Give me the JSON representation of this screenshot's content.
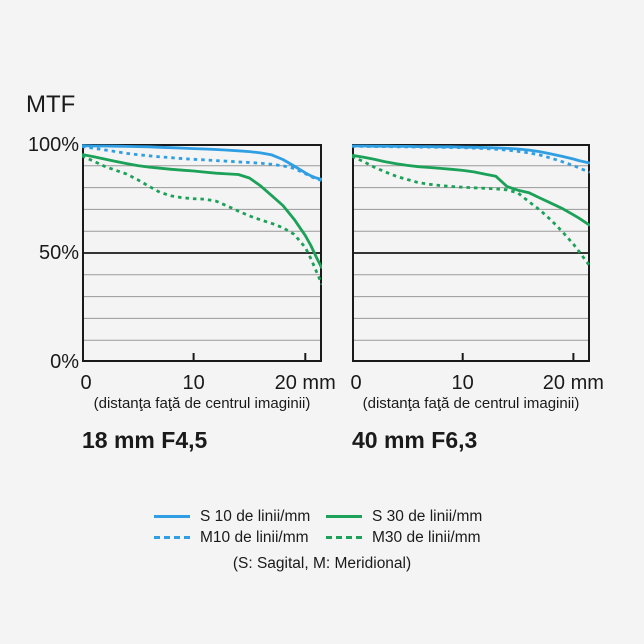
{
  "figure": {
    "y_axis_title": "MTF",
    "y_tick_labels": [
      "100%",
      "50%",
      "0%"
    ],
    "background_color": "#f4f4f4",
    "axis_color": "#1a1a1a",
    "grid_color": "#999999",
    "accent_blue": "#2f9ee3",
    "accent_green": "#1ba158"
  },
  "chart_data": [
    {
      "type": "line",
      "title": "18 mm F4,5",
      "xlabel": "(distanţa faţă de centrul imaginii)",
      "x_tick_labels": [
        "0",
        "10",
        "20 mm"
      ],
      "x_tick_values": [
        0,
        10,
        20
      ],
      "xlim": [
        0,
        21.5
      ],
      "ylim": [
        0,
        100
      ],
      "y_tick_labels": [
        "0%",
        "50%",
        "100%"
      ],
      "grid_step_percent": 10,
      "legend_position": "below-figure",
      "x": [
        0,
        1,
        2,
        3,
        4,
        5,
        6,
        7,
        8,
        9,
        10,
        11,
        12,
        13,
        14,
        15,
        16,
        17,
        18,
        19,
        20,
        20.5,
        21,
        21.5
      ],
      "series": [
        {
          "name": "S 10 de linii/mm",
          "style": "solid",
          "color": "#2f9ee3",
          "values": [
            99.2,
            99.1,
            99.1,
            99.0,
            98.9,
            98.8,
            98.7,
            98.5,
            98.3,
            98.1,
            97.9,
            97.7,
            97.5,
            97.2,
            96.9,
            96.5,
            95.9,
            95.0,
            92.9,
            89.9,
            86.8,
            85.4,
            84.4,
            83.7
          ]
        },
        {
          "name": "M10 de linii/mm",
          "style": "dashed",
          "color": "#2f9ee3",
          "values": [
            98.8,
            98.1,
            97.3,
            96.5,
            95.7,
            95.1,
            94.6,
            94.1,
            93.7,
            93.3,
            93.0,
            92.7,
            92.4,
            92.1,
            91.8,
            91.5,
            91.2,
            90.7,
            90.0,
            88.8,
            86.4,
            85.1,
            84.0,
            83.2
          ]
        },
        {
          "name": "S 30 de linii/mm",
          "style": "solid",
          "color": "#1ba158",
          "values": [
            95.2,
            94.2,
            93.1,
            92.0,
            91.0,
            90.1,
            89.4,
            88.9,
            88.4,
            88.0,
            87.6,
            87.1,
            86.6,
            86.3,
            86.0,
            84.4,
            80.8,
            76.3,
            71.8,
            65.5,
            58.0,
            53.5,
            48.0,
            43.0
          ]
        },
        {
          "name": "M30 de linii/mm",
          "style": "dashed",
          "color": "#1ba158",
          "values": [
            94.6,
            92.2,
            89.8,
            88.0,
            86.2,
            83.6,
            80.6,
            77.8,
            76.2,
            75.3,
            74.9,
            74.7,
            73.8,
            71.6,
            69.2,
            67.0,
            65.2,
            63.6,
            61.6,
            58.6,
            52.5,
            47.5,
            41.5,
            35.5
          ]
        }
      ]
    },
    {
      "type": "line",
      "title": "40 mm F6,3",
      "xlabel": "(distanţa faţă de centrul imaginii)",
      "x_tick_labels": [
        "0",
        "10",
        "20 mm"
      ],
      "x_tick_values": [
        0,
        10,
        20
      ],
      "xlim": [
        0,
        21.5
      ],
      "ylim": [
        0,
        100
      ],
      "y_tick_labels": [
        "0%",
        "50%",
        "100%"
      ],
      "grid_step_percent": 10,
      "legend_position": "below-figure",
      "x": [
        0,
        1,
        2,
        3,
        4,
        5,
        6,
        7,
        8,
        9,
        10,
        11,
        12,
        13,
        14,
        15,
        16,
        17,
        18,
        19,
        20,
        20.5,
        21,
        21.5
      ],
      "series": [
        {
          "name": "S 10 de linii/mm",
          "style": "solid",
          "color": "#2f9ee3",
          "values": [
            99.1,
            99.1,
            99.0,
            99.0,
            98.9,
            98.9,
            98.8,
            98.8,
            98.7,
            98.7,
            98.6,
            98.5,
            98.4,
            98.2,
            98.0,
            97.7,
            97.2,
            96.4,
            95.4,
            94.3,
            93.1,
            92.4,
            91.8,
            91.2
          ]
        },
        {
          "name": "M10 de linii/mm",
          "style": "dashed",
          "color": "#2f9ee3",
          "values": [
            98.9,
            98.9,
            98.8,
            98.8,
            98.7,
            98.7,
            98.6,
            98.6,
            98.5,
            98.4,
            98.3,
            98.1,
            97.9,
            97.6,
            97.2,
            96.6,
            95.9,
            94.9,
            93.5,
            91.9,
            90.1,
            89.1,
            88.0,
            87.0
          ]
        },
        {
          "name": "S 30 de linii/mm",
          "style": "solid",
          "color": "#1ba158",
          "values": [
            94.8,
            94.0,
            93.0,
            91.9,
            90.9,
            90.2,
            89.6,
            89.2,
            88.8,
            88.4,
            87.9,
            87.2,
            86.2,
            85.2,
            80.5,
            78.8,
            77.6,
            75.2,
            72.8,
            70.4,
            67.5,
            66.0,
            64.3,
            62.6
          ]
        },
        {
          "name": "M30 de linii/mm",
          "style": "dashed",
          "color": "#1ba158",
          "values": [
            94.4,
            92.0,
            89.4,
            87.2,
            85.2,
            83.7,
            82.3,
            81.5,
            80.9,
            80.5,
            80.2,
            79.9,
            79.7,
            79.4,
            79.0,
            77.5,
            73.5,
            69.6,
            65.0,
            59.8,
            54.1,
            50.8,
            47.3,
            44.0
          ]
        }
      ]
    }
  ],
  "legend": {
    "items": [
      {
        "label": "S 10 de linii/mm",
        "color": "#2f9ee3",
        "style": "solid"
      },
      {
        "label": "M10 de linii/mm",
        "color": "#2f9ee3",
        "style": "dashed"
      },
      {
        "label": "S 30 de linii/mm",
        "color": "#1ba158",
        "style": "solid"
      },
      {
        "label": "M30 de linii/mm",
        "color": "#1ba158",
        "style": "dashed"
      }
    ],
    "caption": "(S: Sagital, M: Meridional)"
  }
}
